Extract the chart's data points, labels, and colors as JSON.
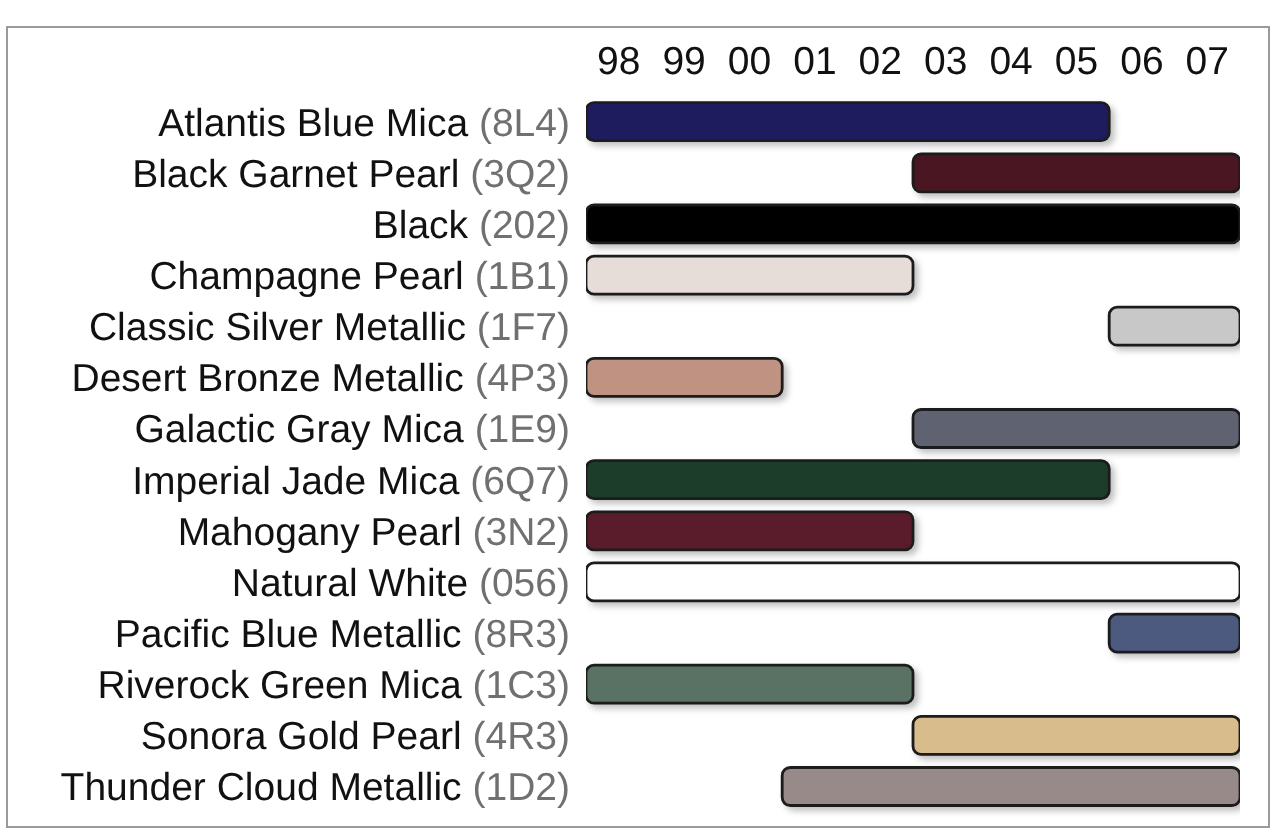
{
  "chart_data": {
    "type": "bar",
    "orientation": "horizontal",
    "categories": [
      "Atlantis Blue Mica (8L4)",
      "Black Garnet Pearl (3Q2)",
      "Black (202)",
      "Champagne Pearl (1B1)",
      "Classic Silver Metallic (1F7)",
      "Desert Bronze Metallic (4P3)",
      "Galactic Gray Mica (1E9)",
      "Imperial Jade Mica (6Q7)",
      "Mahogany Pearl (3N2)",
      "Natural White (056)",
      "Pacific Blue Metallic (8R3)",
      "Riverock Green Mica (1C3)",
      "Sonora Gold Pearl (4R3)",
      "Thunder Cloud Metallic (1D2)"
    ],
    "base": [
      1997.5,
      2002.5,
      1997.5,
      1997.5,
      2005.5,
      1997.5,
      2002.5,
      1997.5,
      1997.5,
      1997.5,
      2005.5,
      1997.5,
      2002.5,
      2000.5
    ],
    "values": [
      8,
      5,
      10,
      5,
      2,
      3,
      5,
      8,
      5,
      10,
      2,
      5,
      5,
      7
    ],
    "colors": [
      "#1e1e5e",
      "#4a1822",
      "#050505",
      "#e6dcd8",
      "#c8c8c8",
      "#c09282",
      "#5e6270",
      "#1e3e2c",
      "#5a1e2a",
      "#ffffff",
      "#4e5a80",
      "#5a7264",
      "#d8bc8c",
      "#988a88"
    ],
    "xlim": [
      1997.5,
      2007.5
    ],
    "xticks": [
      {
        "value": 1998,
        "label": "98"
      },
      {
        "value": 1999,
        "label": "99"
      },
      {
        "value": 2000,
        "label": "00"
      },
      {
        "value": 2001,
        "label": "01"
      },
      {
        "value": 2002,
        "label": "02"
      },
      {
        "value": 2003,
        "label": "03"
      },
      {
        "value": 2004,
        "label": "04"
      },
      {
        "value": 2005,
        "label": "05"
      },
      {
        "value": 2006,
        "label": "06"
      },
      {
        "value": 2007,
        "label": "07"
      }
    ]
  }
}
